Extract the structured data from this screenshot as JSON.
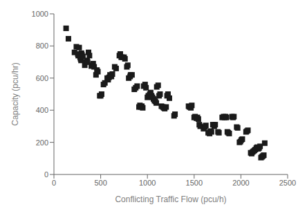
{
  "chart_data": {
    "type": "scatter",
    "xlabel": "Conflicting Traffic Flow (pcu/h)",
    "ylabel": "Capacity (pcu/hr)",
    "x": [
      130,
      155,
      220,
      240,
      255,
      260,
      270,
      280,
      285,
      290,
      295,
      300,
      310,
      330,
      340,
      355,
      360,
      370,
      380,
      400,
      410,
      420,
      430,
      450,
      460,
      470,
      490,
      500,
      510,
      530,
      545,
      570,
      580,
      590,
      600,
      615,
      625,
      650,
      665,
      700,
      710,
      720,
      730,
      750,
      760,
      780,
      790,
      800,
      815,
      820,
      835,
      860,
      875,
      890,
      910,
      920,
      930,
      940,
      950,
      960,
      975,
      985,
      1000,
      1010,
      1025,
      1035,
      1045,
      1055,
      1065,
      1075,
      1085,
      1095,
      1100,
      1115,
      1125,
      1135,
      1150,
      1165,
      1175,
      1185,
      1200,
      1210,
      1220,
      1235,
      1285,
      1295,
      1440,
      1450,
      1465,
      1475,
      1500,
      1510,
      1525,
      1535,
      1545,
      1555,
      1565,
      1600,
      1615,
      1625,
      1650,
      1665,
      1675,
      1685,
      1700,
      1715,
      1725,
      1755,
      1765,
      1800,
      1815,
      1825,
      1835,
      1845,
      1855,
      1865,
      1875,
      1905,
      1915,
      1925,
      1955,
      1965,
      1985,
      1995,
      2005,
      2015,
      2055,
      2065,
      2075,
      2105,
      2115,
      2125,
      2135,
      2145,
      2155,
      2165,
      2175,
      2185,
      2195,
      2205,
      2215,
      2225,
      2235,
      2245,
      2255
    ],
    "values": [
      910,
      845,
      760,
      795,
      750,
      740,
      790,
      730,
      720,
      710,
      755,
      745,
      735,
      680,
      700,
      710,
      700,
      760,
      740,
      675,
      680,
      690,
      670,
      620,
      650,
      640,
      490,
      490,
      500,
      560,
      570,
      600,
      590,
      605,
      620,
      610,
      625,
      670,
      660,
      740,
      750,
      730,
      730,
      730,
      720,
      670,
      680,
      600,
      610,
      620,
      620,
      530,
      540,
      550,
      420,
      430,
      420,
      425,
      415,
      550,
      560,
      540,
      480,
      490,
      500,
      510,
      490,
      480,
      470,
      460,
      455,
      445,
      545,
      555,
      490,
      500,
      425,
      420,
      415,
      410,
      420,
      490,
      500,
      475,
      365,
      375,
      425,
      420,
      415,
      430,
      355,
      360,
      350,
      355,
      345,
      310,
      300,
      285,
      295,
      305,
      260,
      255,
      270,
      265,
      310,
      300,
      310,
      265,
      260,
      355,
      360,
      355,
      360,
      355,
      265,
      260,
      255,
      360,
      355,
      360,
      295,
      290,
      200,
      205,
      215,
      220,
      265,
      270,
      275,
      135,
      130,
      140,
      145,
      150,
      155,
      165,
      170,
      160,
      165,
      175,
      105,
      110,
      115,
      120,
      195
    ],
    "xlim": [
      0,
      2500
    ],
    "ylim": [
      0,
      1000
    ],
    "xticks": [
      0,
      500,
      1000,
      1500,
      2000,
      2500
    ],
    "yticks": [
      0,
      200,
      400,
      600,
      800,
      1000
    ],
    "color": "#1a1a1a",
    "marker": "square",
    "grid": false
  }
}
